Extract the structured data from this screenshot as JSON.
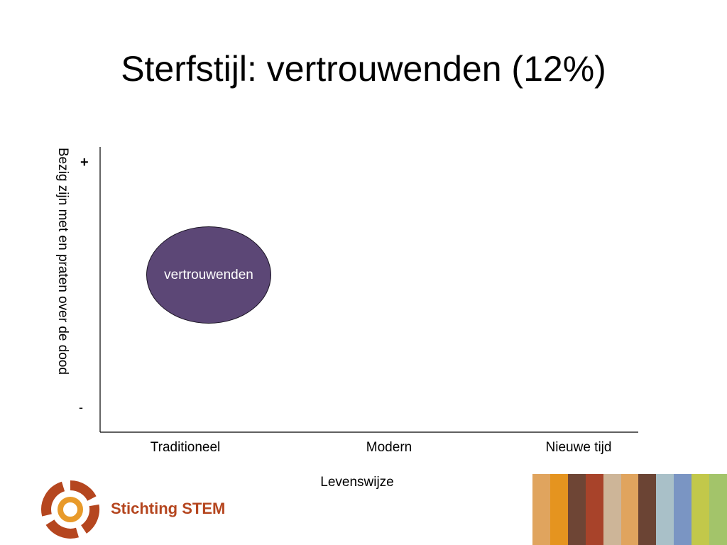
{
  "slide": {
    "title": "Sterfstijl: vertrouwenden (12%)"
  },
  "diagram": {
    "y_axis": {
      "label": "Bezig zijn met en praten over de dood",
      "top_marker": "+",
      "bottom_marker": "-"
    },
    "x_axis": {
      "title": "Levenswijze",
      "categories": [
        "Traditioneel",
        "Modern",
        "Nieuwe tijd"
      ]
    },
    "bubble": {
      "label": "vertrouwenden",
      "color": "#5c4776",
      "x_category": "Traditioneel"
    },
    "axis_color": "#000000"
  },
  "footer": {
    "logo_text_part1": "Stichting ",
    "logo_text_part2": "STEM",
    "logo_text_color": "#b5461f",
    "logo_colors": {
      "ring": "#b5461f",
      "center": "#e89a2a"
    },
    "stripe_colors": [
      "#e0a45e",
      "#e5941f",
      "#6e4535",
      "#a8432a",
      "#cdb598",
      "#e0a45e",
      "#6b4434",
      "#a9c0c8",
      "#7a95c3",
      "#c2c84a",
      "#a3c46a"
    ]
  }
}
